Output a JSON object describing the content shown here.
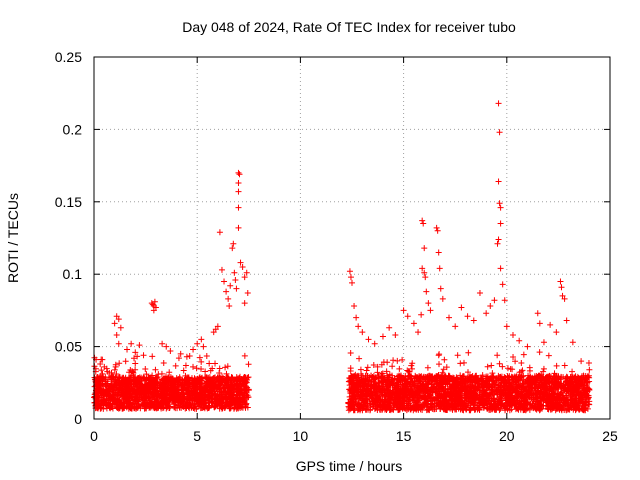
{
  "chart_data": {
    "type": "scatter",
    "title": "Day 048 of 2024, Rate Of TEC Index for receiver tubo",
    "xlabel": "GPS time / hours",
    "ylabel": "ROTI / TECUs",
    "xlim": [
      0,
      25
    ],
    "ylim": [
      0,
      0.25
    ],
    "xticks": [
      0,
      5,
      10,
      15,
      20,
      25
    ],
    "xtick_labels": [
      "0",
      "5",
      "10",
      "15",
      "20",
      "25"
    ],
    "yticks": [
      0,
      0.05,
      0.1,
      0.15,
      0.2,
      0.25
    ],
    "ytick_labels": [
      "0",
      "0.05",
      "0.1",
      "0.15",
      "0.2",
      "0.25"
    ],
    "grid": true,
    "marker": "+",
    "color": "#ff0000",
    "series": [
      {
        "name": "ROTI",
        "segments": [
          {
            "x_range": [
              0.0,
              7.5
            ],
            "base": 0.018,
            "spread": 0.022
          },
          {
            "x_range": [
              12.3,
              24.0
            ],
            "base": 0.018,
            "spread": 0.024
          }
        ],
        "points": [
          {
            "x": 0.1,
            "y": 0.041
          },
          {
            "x": 0.3,
            "y": 0.038
          },
          {
            "x": 0.5,
            "y": 0.036
          },
          {
            "x": 1.0,
            "y": 0.066
          },
          {
            "x": 1.1,
            "y": 0.071
          },
          {
            "x": 1.2,
            "y": 0.069
          },
          {
            "x": 1.3,
            "y": 0.063
          },
          {
            "x": 1.1,
            "y": 0.058
          },
          {
            "x": 1.2,
            "y": 0.052
          },
          {
            "x": 1.6,
            "y": 0.048
          },
          {
            "x": 1.8,
            "y": 0.052
          },
          {
            "x": 2.0,
            "y": 0.046
          },
          {
            "x": 2.2,
            "y": 0.051
          },
          {
            "x": 2.4,
            "y": 0.044
          },
          {
            "x": 2.8,
            "y": 0.08
          },
          {
            "x": 2.85,
            "y": 0.079
          },
          {
            "x": 2.9,
            "y": 0.078
          },
          {
            "x": 2.95,
            "y": 0.081
          },
          {
            "x": 3.0,
            "y": 0.077
          },
          {
            "x": 2.9,
            "y": 0.075
          },
          {
            "x": 3.3,
            "y": 0.052
          },
          {
            "x": 3.5,
            "y": 0.05
          },
          {
            "x": 3.7,
            "y": 0.047
          },
          {
            "x": 4.2,
            "y": 0.045
          },
          {
            "x": 4.5,
            "y": 0.043
          },
          {
            "x": 4.8,
            "y": 0.048
          },
          {
            "x": 5.0,
            "y": 0.052
          },
          {
            "x": 5.2,
            "y": 0.055
          },
          {
            "x": 5.3,
            "y": 0.05
          },
          {
            "x": 5.8,
            "y": 0.06
          },
          {
            "x": 5.9,
            "y": 0.062
          },
          {
            "x": 6.0,
            "y": 0.064
          },
          {
            "x": 6.1,
            "y": 0.129
          },
          {
            "x": 6.2,
            "y": 0.103
          },
          {
            "x": 6.3,
            "y": 0.095
          },
          {
            "x": 6.4,
            "y": 0.088
          },
          {
            "x": 6.5,
            "y": 0.083
          },
          {
            "x": 6.55,
            "y": 0.078
          },
          {
            "x": 6.6,
            "y": 0.092
          },
          {
            "x": 6.7,
            "y": 0.118
          },
          {
            "x": 6.75,
            "y": 0.121
          },
          {
            "x": 6.8,
            "y": 0.101
          },
          {
            "x": 6.85,
            "y": 0.096
          },
          {
            "x": 6.9,
            "y": 0.09
          },
          {
            "x": 7.0,
            "y": 0.146
          },
          {
            "x": 7.0,
            "y": 0.157
          },
          {
            "x": 7.0,
            "y": 0.163
          },
          {
            "x": 7.0,
            "y": 0.17
          },
          {
            "x": 7.05,
            "y": 0.169
          },
          {
            "x": 7.0,
            "y": 0.132
          },
          {
            "x": 7.1,
            "y": 0.108
          },
          {
            "x": 7.2,
            "y": 0.105
          },
          {
            "x": 7.3,
            "y": 0.098
          },
          {
            "x": 7.4,
            "y": 0.101
          },
          {
            "x": 7.45,
            "y": 0.087
          },
          {
            "x": 7.3,
            "y": 0.08
          },
          {
            "x": 12.4,
            "y": 0.102
          },
          {
            "x": 12.45,
            "y": 0.098
          },
          {
            "x": 12.5,
            "y": 0.094
          },
          {
            "x": 12.6,
            "y": 0.078
          },
          {
            "x": 12.7,
            "y": 0.07
          },
          {
            "x": 12.8,
            "y": 0.064
          },
          {
            "x": 13.0,
            "y": 0.06
          },
          {
            "x": 13.3,
            "y": 0.055
          },
          {
            "x": 13.6,
            "y": 0.052
          },
          {
            "x": 14.0,
            "y": 0.057
          },
          {
            "x": 14.3,
            "y": 0.063
          },
          {
            "x": 14.6,
            "y": 0.058
          },
          {
            "x": 15.0,
            "y": 0.075
          },
          {
            "x": 15.2,
            "y": 0.071
          },
          {
            "x": 15.5,
            "y": 0.066
          },
          {
            "x": 15.7,
            "y": 0.06
          },
          {
            "x": 15.85,
            "y": 0.072
          },
          {
            "x": 15.9,
            "y": 0.137
          },
          {
            "x": 15.95,
            "y": 0.135
          },
          {
            "x": 16.0,
            "y": 0.118
          },
          {
            "x": 15.9,
            "y": 0.104
          },
          {
            "x": 16.0,
            "y": 0.101
          },
          {
            "x": 16.05,
            "y": 0.098
          },
          {
            "x": 16.1,
            "y": 0.088
          },
          {
            "x": 16.2,
            "y": 0.08
          },
          {
            "x": 16.3,
            "y": 0.075
          },
          {
            "x": 16.6,
            "y": 0.132
          },
          {
            "x": 16.65,
            "y": 0.13
          },
          {
            "x": 16.7,
            "y": 0.115
          },
          {
            "x": 16.75,
            "y": 0.104
          },
          {
            "x": 16.8,
            "y": 0.09
          },
          {
            "x": 16.9,
            "y": 0.083
          },
          {
            "x": 17.2,
            "y": 0.07
          },
          {
            "x": 17.5,
            "y": 0.064
          },
          {
            "x": 17.8,
            "y": 0.077
          },
          {
            "x": 18.1,
            "y": 0.071
          },
          {
            "x": 18.4,
            "y": 0.068
          },
          {
            "x": 18.7,
            "y": 0.087
          },
          {
            "x": 19.0,
            "y": 0.073
          },
          {
            "x": 19.2,
            "y": 0.078
          },
          {
            "x": 19.4,
            "y": 0.082
          },
          {
            "x": 19.6,
            "y": 0.218
          },
          {
            "x": 19.65,
            "y": 0.198
          },
          {
            "x": 19.6,
            "y": 0.164
          },
          {
            "x": 19.65,
            "y": 0.149
          },
          {
            "x": 19.7,
            "y": 0.146
          },
          {
            "x": 19.7,
            "y": 0.135
          },
          {
            "x": 19.6,
            "y": 0.124
          },
          {
            "x": 19.55,
            "y": 0.121
          },
          {
            "x": 19.7,
            "y": 0.104
          },
          {
            "x": 19.8,
            "y": 0.093
          },
          {
            "x": 19.9,
            "y": 0.082
          },
          {
            "x": 20.0,
            "y": 0.064
          },
          {
            "x": 20.3,
            "y": 0.058
          },
          {
            "x": 20.6,
            "y": 0.054
          },
          {
            "x": 21.0,
            "y": 0.05
          },
          {
            "x": 21.5,
            "y": 0.073
          },
          {
            "x": 21.6,
            "y": 0.066
          },
          {
            "x": 21.8,
            "y": 0.053
          },
          {
            "x": 22.1,
            "y": 0.065
          },
          {
            "x": 22.4,
            "y": 0.06
          },
          {
            "x": 22.6,
            "y": 0.095
          },
          {
            "x": 22.65,
            "y": 0.091
          },
          {
            "x": 22.7,
            "y": 0.085
          },
          {
            "x": 22.8,
            "y": 0.083
          },
          {
            "x": 22.9,
            "y": 0.068
          },
          {
            "x": 23.2,
            "y": 0.053
          },
          {
            "x": 23.6,
            "y": 0.04
          },
          {
            "x": 24.0,
            "y": 0.034
          }
        ]
      }
    ]
  }
}
